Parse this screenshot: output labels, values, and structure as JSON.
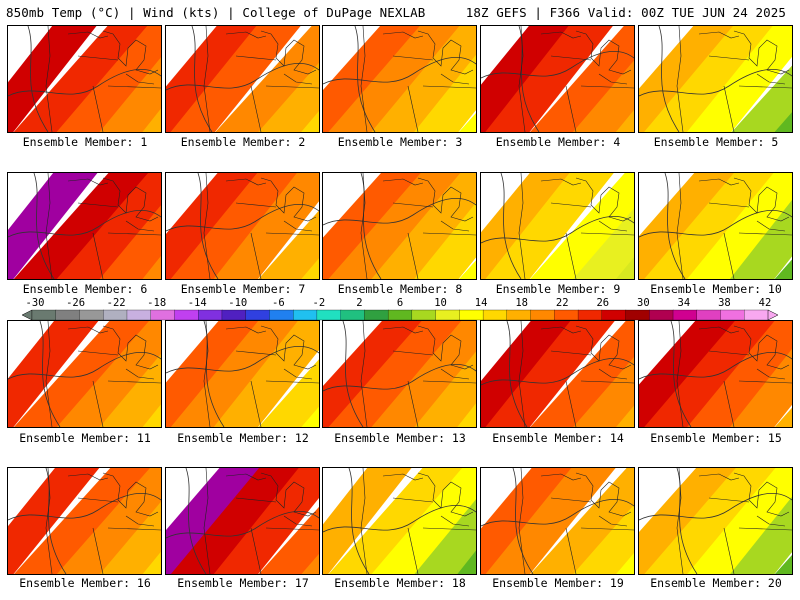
{
  "header": {
    "left": "850mb Temp (°C) | Wind (kts) | College of DuPage NEXLAB",
    "right": "18Z GEFS | F366 Valid: 00Z TUE JUN 24 2025"
  },
  "members": [
    {
      "label": "Ensemble Member: 1",
      "tone": "hot"
    },
    {
      "label": "Ensemble Member: 2",
      "tone": "warm"
    },
    {
      "label": "Ensemble Member: 3",
      "tone": "mild"
    },
    {
      "label": "Ensemble Member: 4",
      "tone": "hot"
    },
    {
      "label": "Ensemble Member: 5",
      "tone": "cool"
    },
    {
      "label": "Ensemble Member: 6",
      "tone": "vhot"
    },
    {
      "label": "Ensemble Member: 7",
      "tone": "warm"
    },
    {
      "label": "Ensemble Member: 8",
      "tone": "mild"
    },
    {
      "label": "Ensemble Member: 9",
      "tone": "yellow"
    },
    {
      "label": "Ensemble Member: 10",
      "tone": "cool"
    },
    {
      "label": "Ensemble Member: 11",
      "tone": "warm"
    },
    {
      "label": "Ensemble Member: 12",
      "tone": "mild"
    },
    {
      "label": "Ensemble Member: 13",
      "tone": "warm"
    },
    {
      "label": "Ensemble Member: 14",
      "tone": "hot"
    },
    {
      "label": "Ensemble Member: 15",
      "tone": "hot"
    },
    {
      "label": "Ensemble Member: 16",
      "tone": "warm"
    },
    {
      "label": "Ensemble Member: 17",
      "tone": "vhot"
    },
    {
      "label": "Ensemble Member: 18",
      "tone": "cool"
    },
    {
      "label": "Ensemble Member: 19",
      "tone": "mild"
    },
    {
      "label": "Ensemble Member: 20",
      "tone": "cool"
    }
  ],
  "legend": {
    "labels": [
      "-30",
      "-26",
      "-22",
      "-18",
      "-14",
      "-10",
      "-6",
      "-2",
      "2",
      "6",
      "10",
      "14",
      "18",
      "22",
      "26",
      "30",
      "34",
      "38",
      "42"
    ],
    "colors": [
      "#6a7a70",
      "#808080",
      "#989898",
      "#b0b0c0",
      "#c8b0e0",
      "#e070e0",
      "#c040f0",
      "#8030e0",
      "#5020c0",
      "#3040e0",
      "#2080f0",
      "#20c0f0",
      "#20e0c0",
      "#20c080",
      "#30a040",
      "#60b820",
      "#a8d820",
      "#e8f020",
      "#ffff00",
      "#ffd800",
      "#ffb000",
      "#ff8800",
      "#ff5a00",
      "#f02800",
      "#d00000",
      "#a00000",
      "#b00050",
      "#d00090",
      "#e040c0",
      "#f070e0",
      "#f8a8f0"
    ]
  }
}
